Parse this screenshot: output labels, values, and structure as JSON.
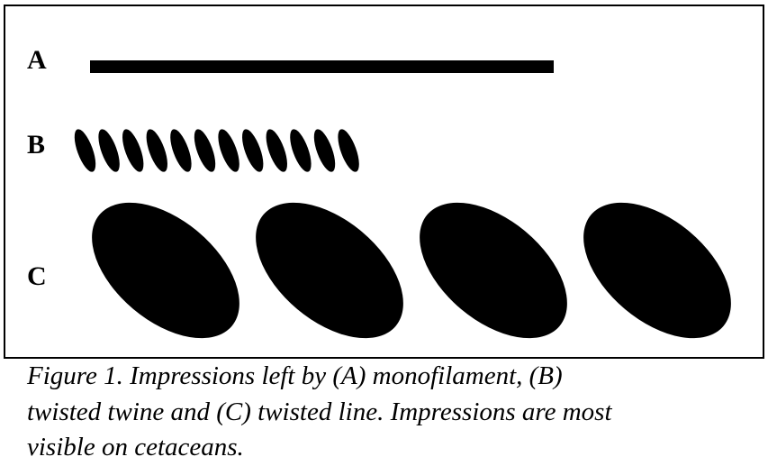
{
  "labels": {
    "a": "A",
    "b": "B",
    "c": "C"
  },
  "shapes": {
    "b_count": 12,
    "c_count": 4,
    "fill": "#000000"
  },
  "caption": {
    "line1": "Figure 1. Impressions left by (A) monofilament, (B)",
    "line2": "twisted twine and (C) twisted line. Impressions are most",
    "line3": "visible on cetaceans."
  }
}
